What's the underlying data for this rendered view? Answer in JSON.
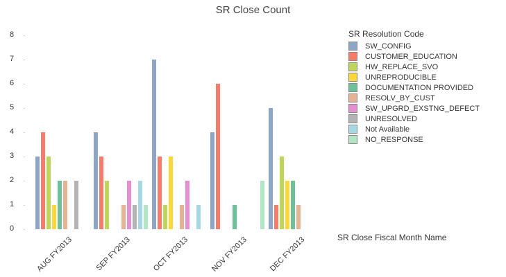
{
  "chart_data": {
    "type": "bar",
    "title": "SR Close Count",
    "xlabel": "SR Close Fiscal Month Name",
    "ylabel": "",
    "ylim": [
      0,
      8
    ],
    "yticks": [
      0,
      1,
      2,
      3,
      4,
      5,
      6,
      7,
      8
    ],
    "grid": false,
    "legend_title": "SR Resolution Code",
    "legend_position": "right",
    "categories": [
      "AUG FY2013",
      "SEP FY2013",
      "OCT FY2013",
      "NOV FY2013",
      "DEC FY2013"
    ],
    "series": [
      {
        "name": "SW_CONFIG",
        "color": "#8DA6C8",
        "values": [
          3,
          4,
          7,
          4,
          5
        ]
      },
      {
        "name": "CUSTOMER_EDUCATION",
        "color": "#F57B6A",
        "values": [
          4,
          3,
          3,
          6,
          1
        ]
      },
      {
        "name": "HW_REPLACE_SVO",
        "color": "#BED55A",
        "values": [
          3,
          2,
          1,
          0,
          3
        ]
      },
      {
        "name": "UNREPRODUCIBLE",
        "color": "#FBD73A",
        "values": [
          1,
          0,
          3,
          0,
          2
        ]
      },
      {
        "name": "DOCUMENTATION PROVIDED",
        "color": "#6CC09A",
        "values": [
          2,
          0,
          0,
          1,
          2
        ]
      },
      {
        "name": "RESOLV_BY_CUST",
        "color": "#E5B393",
        "values": [
          2,
          1,
          1,
          0,
          1
        ]
      },
      {
        "name": "SW_UPGRD_EXSTNG_DEFECT",
        "color": "#E38FD2",
        "values": [
          0,
          2,
          2,
          0,
          0
        ]
      },
      {
        "name": "UNRESOLVED",
        "color": "#B3B3B3",
        "values": [
          2,
          1,
          0,
          0,
          0
        ]
      },
      {
        "name": "Not Available",
        "color": "#A5D8E2",
        "values": [
          0,
          2,
          1,
          0,
          0
        ]
      },
      {
        "name": "NO_RESPONSE",
        "color": "#B2E6C2",
        "values": [
          0,
          1,
          0,
          2,
          0
        ]
      }
    ]
  }
}
